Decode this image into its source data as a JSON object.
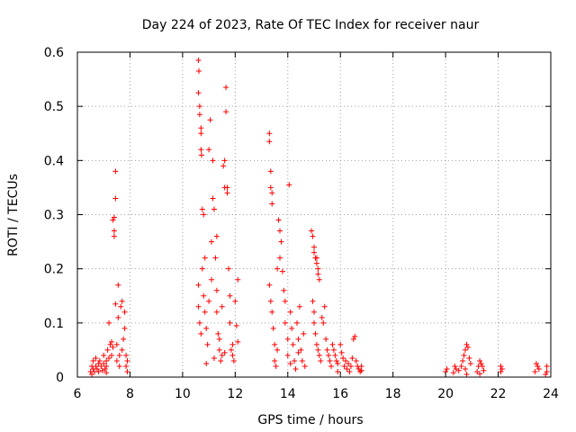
{
  "chart_data": {
    "type": "scatter",
    "title": "Day 224 of 2023, Rate Of TEC Index for receiver naur",
    "xlabel": "GPS time / hours",
    "ylabel": "ROTI / TECUs",
    "xlim": [
      6,
      24
    ],
    "ylim": [
      0,
      0.6
    ],
    "x_ticks": [
      "6",
      "8",
      "10",
      "12",
      "14",
      "16",
      "18",
      "20",
      "22",
      "24"
    ],
    "y_ticks": [
      "0",
      "0.1",
      "0.2",
      "0.3",
      "0.4",
      "0.5",
      "0.6"
    ],
    "grid": true,
    "marker": "+",
    "color": "#ff0000",
    "points": [
      [
        6.5,
        0.01
      ],
      [
        6.55,
        0.02
      ],
      [
        6.6,
        0.03
      ],
      [
        6.6,
        0.015
      ],
      [
        6.65,
        0.01
      ],
      [
        6.7,
        0.02
      ],
      [
        6.7,
        0.035
      ],
      [
        6.75,
        0.015
      ],
      [
        6.8,
        0.025
      ],
      [
        6.8,
        0.01
      ],
      [
        6.85,
        0.03
      ],
      [
        6.9,
        0.02
      ],
      [
        6.95,
        0.012
      ],
      [
        7.0,
        0.025
      ],
      [
        7.0,
        0.04
      ],
      [
        7.05,
        0.015
      ],
      [
        7.1,
        0.03
      ],
      [
        7.1,
        0.02
      ],
      [
        7.15,
        0.05
      ],
      [
        7.2,
        0.035
      ],
      [
        7.2,
        0.1
      ],
      [
        7.25,
        0.06
      ],
      [
        7.3,
        0.04
      ],
      [
        7.3,
        0.065
      ],
      [
        7.35,
        0.055
      ],
      [
        7.35,
        0.29
      ],
      [
        7.4,
        0.295
      ],
      [
        7.4,
        0.27
      ],
      [
        7.4,
        0.26
      ],
      [
        7.45,
        0.38
      ],
      [
        7.45,
        0.33
      ],
      [
        7.45,
        0.135
      ],
      [
        7.5,
        0.06
      ],
      [
        7.5,
        0.03
      ],
      [
        7.55,
        0.17
      ],
      [
        7.55,
        0.11
      ],
      [
        7.6,
        0.04
      ],
      [
        7.6,
        0.02
      ],
      [
        7.65,
        0.13
      ],
      [
        7.7,
        0.14
      ],
      [
        7.7,
        0.05
      ],
      [
        7.75,
        0.07
      ],
      [
        7.8,
        0.12
      ],
      [
        7.8,
        0.09
      ],
      [
        7.85,
        0.04
      ],
      [
        7.85,
        0.02
      ],
      [
        7.9,
        0.01
      ],
      [
        7.9,
        0.03
      ],
      [
        6.55,
        0.005
      ],
      [
        7.1,
        0.008
      ],
      [
        10.6,
        0.585
      ],
      [
        10.62,
        0.565
      ],
      [
        10.6,
        0.525
      ],
      [
        10.65,
        0.5
      ],
      [
        10.65,
        0.485
      ],
      [
        10.7,
        0.46
      ],
      [
        10.7,
        0.45
      ],
      [
        10.7,
        0.42
      ],
      [
        10.72,
        0.41
      ],
      [
        10.75,
        0.31
      ],
      [
        10.8,
        0.3
      ],
      [
        10.6,
        0.17
      ],
      [
        10.6,
        0.13
      ],
      [
        10.65,
        0.1
      ],
      [
        10.7,
        0.08
      ],
      [
        10.75,
        0.2
      ],
      [
        10.8,
        0.15
      ],
      [
        10.85,
        0.12
      ],
      [
        10.9,
        0.09
      ],
      [
        10.95,
        0.06
      ],
      [
        11.0,
        0.42
      ],
      [
        11.05,
        0.475
      ],
      [
        11.1,
        0.25
      ],
      [
        11.15,
        0.4
      ],
      [
        11.15,
        0.33
      ],
      [
        11.2,
        0.31
      ],
      [
        11.25,
        0.22
      ],
      [
        11.3,
        0.16
      ],
      [
        11.3,
        0.12
      ],
      [
        11.35,
        0.08
      ],
      [
        11.4,
        0.05
      ],
      [
        11.45,
        0.03
      ],
      [
        11.5,
        0.04
      ],
      [
        11.55,
        0.39
      ],
      [
        11.6,
        0.4
      ],
      [
        11.6,
        0.35
      ],
      [
        11.65,
        0.535
      ],
      [
        11.65,
        0.49
      ],
      [
        11.7,
        0.35
      ],
      [
        11.7,
        0.34
      ],
      [
        11.75,
        0.2
      ],
      [
        11.8,
        0.15
      ],
      [
        11.8,
        0.1
      ],
      [
        11.85,
        0.05
      ],
      [
        11.9,
        0.04
      ],
      [
        11.95,
        0.03
      ],
      [
        12.0,
        0.14
      ],
      [
        12.05,
        0.095
      ],
      [
        12.1,
        0.18
      ],
      [
        12.1,
        0.065
      ],
      [
        10.9,
        0.025
      ],
      [
        11.2,
        0.035
      ],
      [
        11.4,
        0.07
      ],
      [
        11.0,
        0.14
      ],
      [
        10.85,
        0.22
      ],
      [
        11.1,
        0.18
      ],
      [
        11.3,
        0.26
      ],
      [
        11.5,
        0.13
      ],
      [
        11.6,
        0.045
      ],
      [
        11.9,
        0.06
      ],
      [
        13.3,
        0.45
      ],
      [
        13.3,
        0.435
      ],
      [
        13.35,
        0.38
      ],
      [
        13.35,
        0.35
      ],
      [
        13.4,
        0.34
      ],
      [
        13.4,
        0.32
      ],
      [
        13.3,
        0.17
      ],
      [
        13.35,
        0.14
      ],
      [
        13.4,
        0.12
      ],
      [
        13.45,
        0.09
      ],
      [
        13.5,
        0.06
      ],
      [
        13.5,
        0.03
      ],
      [
        13.55,
        0.02
      ],
      [
        13.6,
        0.05
      ],
      [
        13.65,
        0.29
      ],
      [
        13.7,
        0.27
      ],
      [
        13.75,
        0.25
      ],
      [
        13.7,
        0.22
      ],
      [
        13.8,
        0.195
      ],
      [
        13.85,
        0.16
      ],
      [
        13.9,
        0.14
      ],
      [
        13.9,
        0.1
      ],
      [
        14.0,
        0.07
      ],
      [
        14.0,
        0.04
      ],
      [
        14.05,
        0.355
      ],
      [
        14.1,
        0.12
      ],
      [
        14.15,
        0.09
      ],
      [
        14.2,
        0.06
      ],
      [
        14.25,
        0.03
      ],
      [
        14.3,
        0.015
      ],
      [
        14.35,
        0.1
      ],
      [
        14.4,
        0.07
      ],
      [
        14.45,
        0.13
      ],
      [
        14.5,
        0.05
      ],
      [
        14.55,
        0.03
      ],
      [
        14.6,
        0.08
      ],
      [
        14.65,
        0.02
      ],
      [
        13.6,
        0.2
      ],
      [
        14.1,
        0.025
      ],
      [
        14.4,
        0.045
      ],
      [
        14.9,
        0.27
      ],
      [
        14.95,
        0.26
      ],
      [
        15.0,
        0.24
      ],
      [
        15.0,
        0.23
      ],
      [
        15.05,
        0.22
      ],
      [
        15.1,
        0.22
      ],
      [
        15.1,
        0.21
      ],
      [
        15.15,
        0.2
      ],
      [
        15.15,
        0.19
      ],
      [
        15.2,
        0.18
      ],
      [
        14.95,
        0.14
      ],
      [
        15.0,
        0.12
      ],
      [
        15.0,
        0.1
      ],
      [
        15.05,
        0.08
      ],
      [
        15.1,
        0.06
      ],
      [
        15.15,
        0.05
      ],
      [
        15.2,
        0.04
      ],
      [
        15.25,
        0.03
      ],
      [
        15.3,
        0.11
      ],
      [
        15.35,
        0.1
      ],
      [
        15.4,
        0.13
      ],
      [
        15.45,
        0.07
      ],
      [
        15.5,
        0.05
      ],
      [
        15.55,
        0.04
      ],
      [
        15.6,
        0.03
      ],
      [
        15.65,
        0.02
      ],
      [
        15.7,
        0.06
      ],
      [
        15.75,
        0.05
      ],
      [
        15.8,
        0.04
      ],
      [
        15.85,
        0.03
      ],
      [
        15.9,
        0.025
      ],
      [
        16.0,
        0.06
      ],
      [
        16.05,
        0.045
      ],
      [
        16.1,
        0.035
      ],
      [
        16.15,
        0.02
      ],
      [
        16.2,
        0.03
      ],
      [
        16.25,
        0.015
      ],
      [
        16.3,
        0.025
      ],
      [
        16.35,
        0.01
      ],
      [
        16.4,
        0.02
      ],
      [
        16.45,
        0.035
      ],
      [
        16.5,
        0.07
      ],
      [
        16.55,
        0.075
      ],
      [
        16.6,
        0.03
      ],
      [
        16.65,
        0.02
      ],
      [
        16.7,
        0.015
      ],
      [
        16.75,
        0.01
      ],
      [
        16.8,
        0.02
      ],
      [
        16.8,
        0.012
      ],
      [
        15.9,
        0.01
      ],
      [
        20.0,
        0.01
      ],
      [
        20.05,
        0.015
      ],
      [
        20.3,
        0.008
      ],
      [
        20.35,
        0.02
      ],
      [
        20.4,
        0.015
      ],
      [
        20.5,
        0.012
      ],
      [
        20.6,
        0.02
      ],
      [
        20.65,
        0.03
      ],
      [
        20.7,
        0.04
      ],
      [
        20.75,
        0.05
      ],
      [
        20.8,
        0.06
      ],
      [
        20.85,
        0.055
      ],
      [
        20.9,
        0.035
      ],
      [
        20.95,
        0.025
      ],
      [
        20.75,
        0.015
      ],
      [
        21.2,
        0.01
      ],
      [
        21.25,
        0.02
      ],
      [
        21.3,
        0.03
      ],
      [
        21.35,
        0.025
      ],
      [
        21.4,
        0.02
      ],
      [
        21.45,
        0.012
      ],
      [
        22.1,
        0.01
      ],
      [
        22.15,
        0.015
      ],
      [
        22.1,
        0.02
      ],
      [
        23.4,
        0.01
      ],
      [
        23.45,
        0.025
      ],
      [
        23.5,
        0.02
      ],
      [
        23.55,
        0.015
      ],
      [
        23.8,
        0.005
      ],
      [
        23.85,
        0.01
      ],
      [
        23.85,
        0.02
      ],
      [
        20.8,
        0.005
      ],
      [
        21.3,
        0.006
      ]
    ]
  }
}
